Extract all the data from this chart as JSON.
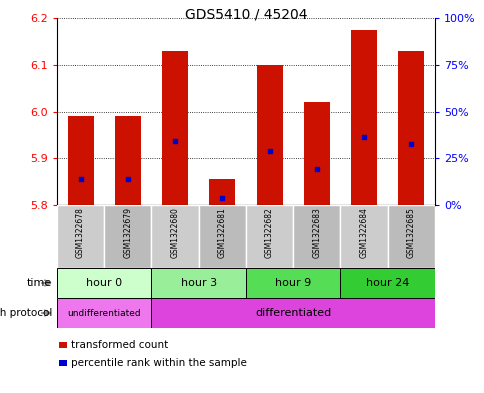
{
  "title": "GDS5410 / 45204",
  "samples": [
    "GSM1322678",
    "GSM1322679",
    "GSM1322680",
    "GSM1322681",
    "GSM1322682",
    "GSM1322683",
    "GSM1322684",
    "GSM1322685"
  ],
  "bar_bottoms": [
    5.8,
    5.8,
    5.8,
    5.8,
    5.8,
    5.8,
    5.8,
    5.8
  ],
  "bar_tops": [
    5.99,
    5.99,
    6.13,
    5.855,
    6.1,
    6.02,
    6.175,
    6.13
  ],
  "percentile_values": [
    5.856,
    5.856,
    5.936,
    5.816,
    5.916,
    5.876,
    5.946,
    5.931
  ],
  "ylim": [
    5.8,
    6.2
  ],
  "yticks_left": [
    5.8,
    5.9,
    6.0,
    6.1,
    6.2
  ],
  "yticks_right": [
    0,
    25,
    50,
    75,
    100
  ],
  "bar_color": "#cc1100",
  "percentile_color": "#0000cc",
  "time_groups": [
    {
      "label": "hour 0",
      "start": 0,
      "end": 2,
      "color": "#ccffcc"
    },
    {
      "label": "hour 3",
      "start": 2,
      "end": 4,
      "color": "#99ee99"
    },
    {
      "label": "hour 9",
      "start": 4,
      "end": 6,
      "color": "#55dd55"
    },
    {
      "label": "hour 24",
      "start": 6,
      "end": 8,
      "color": "#33cc33"
    }
  ],
  "growth_groups": [
    {
      "label": "undifferentiated",
      "start": 0,
      "end": 2,
      "color": "#ee77ee"
    },
    {
      "label": "differentiated",
      "start": 2,
      "end": 8,
      "color": "#dd44dd"
    }
  ],
  "legend_items": [
    {
      "color": "#cc1100",
      "label": "transformed count"
    },
    {
      "color": "#0000cc",
      "label": "percentile rank within the sample"
    }
  ],
  "sample_colors": [
    "#cccccc",
    "#bbbbbb",
    "#cccccc",
    "#bbbbbb",
    "#cccccc",
    "#bbbbbb",
    "#cccccc",
    "#bbbbbb"
  ]
}
